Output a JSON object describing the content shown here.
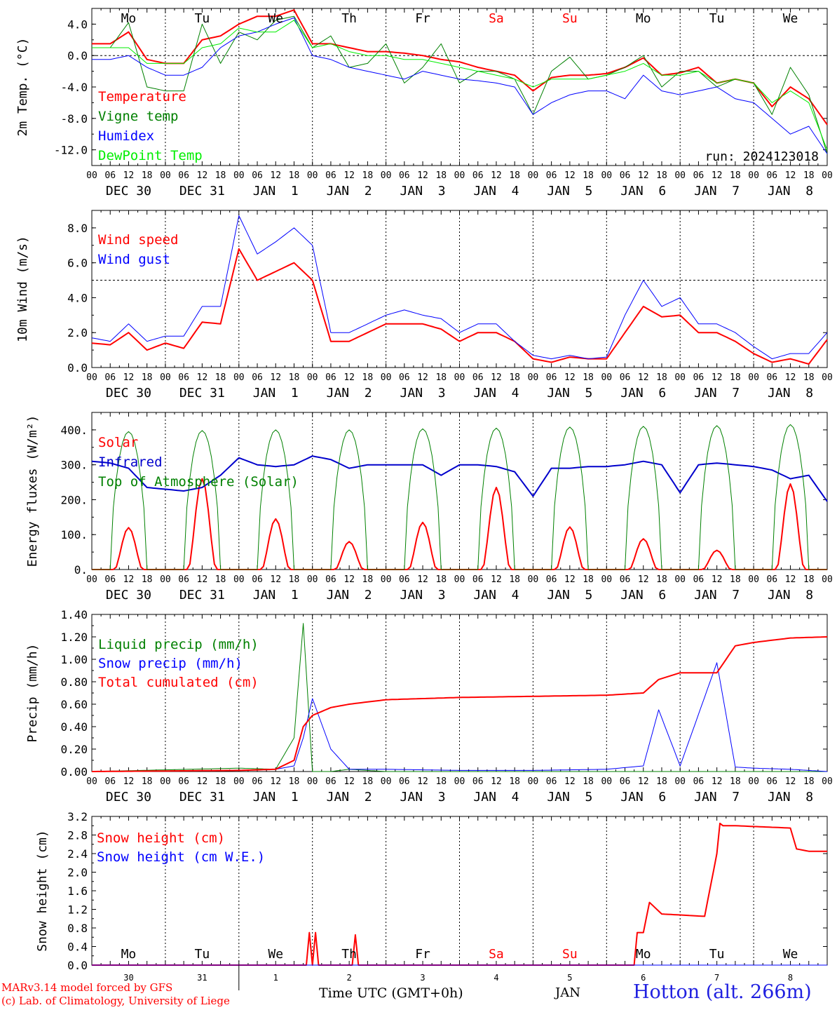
{
  "chart_data": [
    {
      "type": "line",
      "ylabel": "2m Temp. (°C)",
      "ylim": [
        -14.0,
        6.0
      ],
      "yticks": [
        -12,
        -8,
        -4,
        0,
        4
      ],
      "reference_line": 0,
      "run_label": "run: 2024123018",
      "day_labels": [
        {
          "label": "Mo",
          "color": "#000000"
        },
        {
          "label": "Tu",
          "color": "#000000"
        },
        {
          "label": "We",
          "color": "#000000"
        },
        {
          "label": "Th",
          "color": "#000000"
        },
        {
          "label": "Fr",
          "color": "#000000"
        },
        {
          "label": "Sa",
          "color": "#ff0000"
        },
        {
          "label": "Su",
          "color": "#ff0000"
        },
        {
          "label": "Mo",
          "color": "#000000"
        },
        {
          "label": "Tu",
          "color": "#000000"
        },
        {
          "label": "We",
          "color": "#000000"
        }
      ],
      "x_hours": [
        0,
        6,
        12,
        18,
        24,
        30,
        36,
        42,
        48,
        54,
        60,
        66,
        72,
        78,
        84,
        90,
        96,
        102,
        108,
        114,
        120,
        126,
        132,
        138,
        144,
        150,
        156,
        162,
        168,
        174,
        180,
        186,
        192,
        198,
        204,
        210,
        216,
        222,
        228,
        234,
        240
      ],
      "series": [
        {
          "name": "Temperature",
          "color": "#ff0000",
          "width": 2,
          "values": [
            1.5,
            1.5,
            3.0,
            -0.5,
            -1.0,
            -1.0,
            2.0,
            2.5,
            4.0,
            5.0,
            5.0,
            5.8,
            1.5,
            1.5,
            1.0,
            0.5,
            0.5,
            0.3,
            0.0,
            -0.5,
            -0.8,
            -1.5,
            -2.0,
            -2.5,
            -4.5,
            -2.8,
            -2.5,
            -2.5,
            -2.3,
            -1.5,
            -0.3,
            -2.5,
            -2.2,
            -1.5,
            -3.5,
            -3.0,
            -3.5,
            -6.5,
            -4.0,
            -5.5,
            -8.8
          ]
        },
        {
          "name": "Vigne temp",
          "color": "#008000",
          "width": 1,
          "values": [
            1.0,
            1.0,
            4.2,
            -4.0,
            -4.5,
            -4.5,
            4.0,
            -1.0,
            3.0,
            2.0,
            4.5,
            5.0,
            1.0,
            2.5,
            -1.5,
            -1.0,
            1.5,
            -3.5,
            -1.5,
            1.5,
            -3.5,
            -2.0,
            -2.0,
            -3.0,
            -7.5,
            -2.0,
            -0.2,
            -3.0,
            -2.5,
            -1.5,
            0.0,
            -4.0,
            -2.0,
            -2.0,
            -4.0,
            -3.0,
            -3.5,
            -7.5,
            -1.5,
            -5.0,
            -12.5
          ]
        },
        {
          "name": "Humidex",
          "color": "#0000ff",
          "width": 1,
          "values": [
            -0.5,
            -0.5,
            0.0,
            -1.5,
            -2.5,
            -2.5,
            -1.5,
            1.0,
            2.5,
            3.0,
            4.0,
            4.8,
            0.0,
            -0.5,
            -1.5,
            -2.0,
            -2.5,
            -3.0,
            -2.0,
            -2.5,
            -3.0,
            -3.2,
            -3.5,
            -4.0,
            -7.5,
            -6.0,
            -5.0,
            -4.5,
            -4.5,
            -5.5,
            -2.5,
            -4.5,
            -5.0,
            -4.5,
            -4.0,
            -5.5,
            -6.0,
            -8.0,
            -10.0,
            -9.0,
            -12.5
          ]
        },
        {
          "name": "DewPoint Temp",
          "color": "#00ee00",
          "width": 1,
          "values": [
            1.0,
            1.0,
            1.0,
            -1.0,
            -1.0,
            -1.0,
            1.0,
            1.5,
            3.5,
            3.0,
            3.0,
            4.5,
            1.0,
            1.5,
            0.5,
            0.0,
            0.0,
            -0.5,
            -0.5,
            -1.0,
            -1.5,
            -2.0,
            -2.5,
            -3.0,
            -4.0,
            -3.0,
            -3.0,
            -3.0,
            -2.5,
            -2.0,
            -1.0,
            -2.5,
            -2.5,
            -2.0,
            -3.5,
            -3.0,
            -3.5,
            -6.0,
            -4.5,
            -6.0,
            -12.0
          ]
        }
      ]
    },
    {
      "type": "line",
      "ylabel": "10m Wind (m/s)",
      "ylim": [
        0,
        9
      ],
      "yticks": [
        0.0,
        2.0,
        4.0,
        6.0,
        8.0
      ],
      "reference_line": 5,
      "x_hours": [
        0,
        6,
        12,
        18,
        24,
        30,
        36,
        42,
        48,
        54,
        60,
        66,
        72,
        78,
        84,
        90,
        96,
        102,
        108,
        114,
        120,
        126,
        132,
        138,
        144,
        150,
        156,
        162,
        168,
        174,
        180,
        186,
        192,
        198,
        204,
        210,
        216,
        222,
        228,
        234,
        240
      ],
      "series": [
        {
          "name": "Wind speed",
          "color": "#ff0000",
          "width": 2,
          "values": [
            1.4,
            1.3,
            2.0,
            1.0,
            1.4,
            1.1,
            2.6,
            2.5,
            6.8,
            5.0,
            5.5,
            6.0,
            5.0,
            1.5,
            1.5,
            2.0,
            2.5,
            2.5,
            2.5,
            2.2,
            1.5,
            2.0,
            2.0,
            1.5,
            0.5,
            0.3,
            0.6,
            0.5,
            0.5,
            2.0,
            3.5,
            2.9,
            3.0,
            2.0,
            2.0,
            1.5,
            0.8,
            0.3,
            0.5,
            0.2,
            1.6
          ]
        },
        {
          "name": "Wind gust",
          "color": "#0000ff",
          "width": 1,
          "values": [
            1.7,
            1.5,
            2.5,
            1.5,
            1.8,
            1.8,
            3.5,
            3.5,
            8.7,
            6.5,
            7.2,
            8.0,
            7.0,
            2.0,
            2.0,
            2.5,
            3.0,
            3.3,
            3.0,
            2.8,
            2.0,
            2.5,
            2.5,
            1.5,
            0.7,
            0.5,
            0.7,
            0.5,
            0.6,
            3.0,
            5.0,
            3.5,
            4.0,
            2.5,
            2.5,
            2.0,
            1.2,
            0.5,
            0.8,
            0.8,
            2.0
          ]
        }
      ]
    },
    {
      "type": "line",
      "ylabel": "Energy fluxes (W/m²)",
      "ylim": [
        0,
        450
      ],
      "yticks": [
        0,
        100,
        200,
        300,
        400
      ],
      "series": [
        {
          "name": "Solar",
          "color": "#ff0000",
          "width": 2,
          "day_peaks": [
            120,
            260,
            145,
            80,
            135,
            235,
            122,
            88,
            55,
            245
          ]
        },
        {
          "name": "Infrared",
          "color": "#0000cc",
          "width": 2,
          "x_hours": [
            0,
            6,
            12,
            18,
            24,
            30,
            36,
            42,
            48,
            54,
            60,
            66,
            72,
            78,
            84,
            90,
            96,
            102,
            108,
            114,
            120,
            126,
            132,
            138,
            144,
            150,
            156,
            162,
            168,
            174,
            180,
            186,
            192,
            198,
            204,
            210,
            216,
            222,
            228,
            234,
            240
          ],
          "values": [
            310,
            305,
            290,
            235,
            230,
            225,
            235,
            270,
            320,
            300,
            295,
            300,
            325,
            315,
            290,
            300,
            300,
            300,
            300,
            270,
            300,
            300,
            295,
            280,
            210,
            290,
            290,
            295,
            295,
            300,
            310,
            300,
            220,
            300,
            305,
            300,
            295,
            285,
            260,
            270,
            195
          ]
        },
        {
          "name": "Top of Atmosphere (Solar)",
          "color": "#008000",
          "width": 1,
          "day_peaks": [
            395,
            398,
            400,
            400,
            403,
            405,
            408,
            410,
            412,
            415
          ]
        }
      ]
    },
    {
      "type": "line",
      "ylabel": "Precip (mm/h)",
      "ylim": [
        0.0,
        1.4
      ],
      "yticks": [
        0.0,
        0.2,
        0.4,
        0.6,
        0.8,
        1.0,
        1.2,
        1.4
      ],
      "x_hours": [
        0,
        48,
        60,
        66,
        69,
        72,
        78,
        84,
        96,
        120,
        144,
        168,
        180,
        185,
        192,
        204,
        210,
        216,
        228,
        240
      ],
      "series": [
        {
          "name": "Liquid precip (mm/h)",
          "color": "#008000",
          "width": 1,
          "values": [
            0.0,
            0.03,
            0.02,
            0.3,
            1.32,
            0.0,
            0.0,
            0.02,
            0.0,
            0.0,
            0.0,
            0.0,
            0.0,
            0.0,
            0.0,
            0.0,
            0.0,
            0.0,
            0.0,
            0.0
          ]
        },
        {
          "name": "Snow precip (mm/h)",
          "color": "#0000ff",
          "width": 1,
          "values": [
            0.0,
            0.01,
            0.02,
            0.05,
            0.3,
            0.65,
            0.2,
            0.02,
            0.02,
            0.01,
            0.01,
            0.02,
            0.05,
            0.55,
            0.05,
            0.97,
            0.04,
            0.03,
            0.02,
            0.0
          ]
        },
        {
          "name": "Total cumulated (cm)",
          "color": "#ff0000",
          "width": 2,
          "values": [
            0.0,
            0.01,
            0.02,
            0.1,
            0.4,
            0.5,
            0.57,
            0.6,
            0.64,
            0.66,
            0.67,
            0.68,
            0.7,
            0.82,
            0.88,
            0.88,
            1.12,
            1.15,
            1.19,
            1.2
          ]
        }
      ]
    },
    {
      "type": "line",
      "ylabel": "Snow height (cm)",
      "ylim": [
        0.0,
        3.2
      ],
      "yticks": [
        0.0,
        0.4,
        0.8,
        1.2,
        1.6,
        2.0,
        2.4,
        2.8,
        3.2
      ],
      "x_hours": [
        0,
        70,
        71,
        72,
        73,
        74,
        85,
        86,
        87,
        177,
        178,
        180,
        182,
        186,
        200,
        204,
        205,
        206,
        210,
        228,
        230,
        234,
        240
      ],
      "series": [
        {
          "name": "Snow height (cm)",
          "color": "#ff0000",
          "width": 2,
          "values": [
            0.0,
            0.0,
            0.7,
            0.0,
            0.7,
            0.0,
            0.0,
            0.65,
            0.0,
            0.0,
            0.7,
            0.7,
            1.35,
            1.1,
            1.05,
            2.4,
            3.05,
            3.0,
            3.0,
            2.95,
            2.5,
            2.45,
            2.45
          ]
        },
        {
          "name": "Snow height (cm W.E.)",
          "color": "#0000ff",
          "width": 1,
          "values": [
            0.0,
            0.0,
            0.0,
            0.0,
            0.0,
            0.0,
            0.0,
            0.0,
            0.0,
            0.0,
            0.0,
            0.0,
            0.0,
            0.0,
            0.0,
            0.0,
            0.0,
            0.0,
            0.0,
            0.0,
            0.0,
            0.0,
            0.0
          ]
        }
      ]
    }
  ],
  "date_labels": [
    "DEC 30",
    "DEC 31",
    "JAN  1",
    "JAN  2",
    "JAN  3",
    "JAN  4",
    "JAN  5",
    "JAN  6",
    "JAN  7",
    "JAN  8"
  ],
  "hour_ticks": [
    "00",
    "06",
    "12",
    "18"
  ],
  "hour_end_tick": "00",
  "bottom_axis": {
    "day_numbers": [
      "30",
      "31",
      "1",
      "2",
      "3",
      "4",
      "5",
      "6",
      "7",
      "8"
    ],
    "month_label": "JAN",
    "xlabel": "Time UTC (GMT+0h)"
  },
  "footer": {
    "credit_line1": "MARv3.14 model forced by GFS",
    "credit_line2": "(c) Lab. of Climatology, University of Liege",
    "station": "Hotton (alt. 266m)"
  }
}
